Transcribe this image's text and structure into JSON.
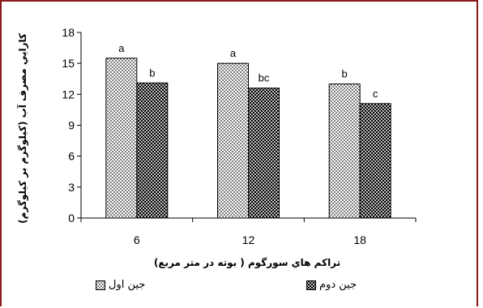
{
  "chart_data": {
    "type": "bar",
    "categories": [
      "6",
      "12",
      "18"
    ],
    "series": [
      {
        "name": "جين اول",
        "values": [
          15.5,
          15.0,
          13.0
        ],
        "labels": [
          "a",
          "a",
          "b"
        ],
        "pattern": "dots-light"
      },
      {
        "name": "جين دوم",
        "values": [
          13.1,
          12.6,
          11.1
        ],
        "labels": [
          "b",
          "bc",
          "c"
        ],
        "pattern": "dots-dark"
      }
    ],
    "xlabel": "تراكم هاي سورگوم ( بوته در متر مربع)",
    "ylabel": "كارايي مصرف آب (كيلوگرم بر كيلوگرم)",
    "ylim": [
      0,
      18
    ],
    "yticks": [
      "0",
      "3",
      "6",
      "9",
      "12",
      "15",
      "18"
    ],
    "grid": false,
    "legend_position": "bottom"
  },
  "colors": {
    "frame": "#8b1a1a",
    "axis": "#000000"
  }
}
